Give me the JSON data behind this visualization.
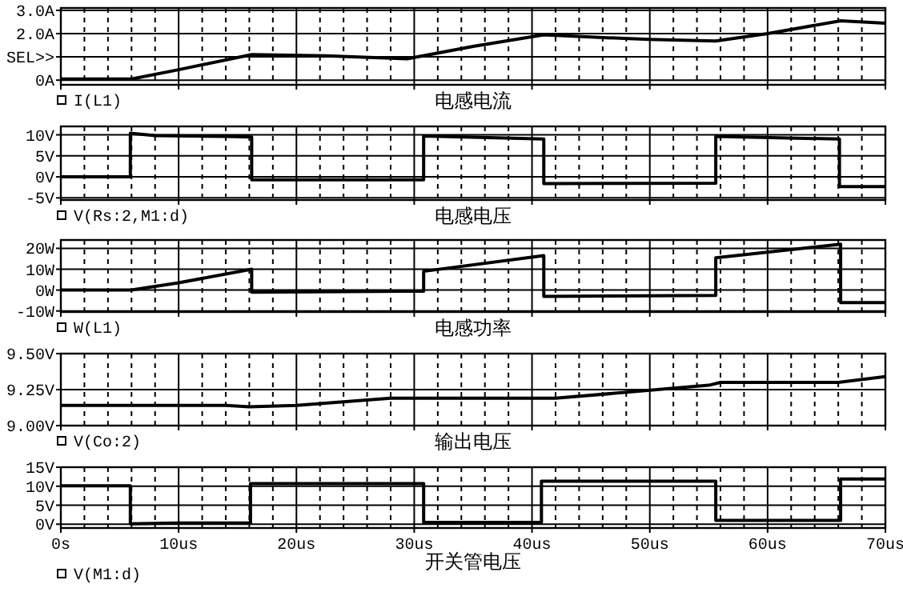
{
  "chart_data": [
    {
      "type": "line",
      "xlabel": "电感电流",
      "legend": "bottom left",
      "grid": true,
      "tick_labels": "y",
      "line_style": "solid",
      "xlim": [
        0,
        70
      ],
      "xticks": [
        0,
        10,
        20,
        30,
        40,
        50,
        60,
        70
      ],
      "ylim": [
        -0.2,
        3.1
      ],
      "yticks": [
        {
          "value": 0,
          "label": "0A"
        },
        {
          "value": 1,
          "label": "SEL>>"
        },
        {
          "value": 2,
          "label": "2.0A"
        },
        {
          "value": 3,
          "label": "3.0A"
        }
      ],
      "x": [
        0,
        6,
        10,
        16.2,
        22.5,
        29.4,
        35,
        41,
        45,
        50,
        55.6,
        60,
        66.2,
        70
      ],
      "series": [
        {
          "name": "I(L1)",
          "color": "#000000",
          "values": [
            0.05,
            0.05,
            0.45,
            1.1,
            1.05,
            0.92,
            1.45,
            1.95,
            1.85,
            1.75,
            1.68,
            2.0,
            2.55,
            2.45
          ]
        }
      ]
    },
    {
      "type": "line",
      "xlabel": "电感电压",
      "legend": "bottom left",
      "grid": true,
      "tick_labels": "y",
      "line_style": "solid",
      "xlim": [
        0,
        70
      ],
      "xticks": [
        0,
        10,
        20,
        30,
        40,
        50,
        60,
        70
      ],
      "ylim": [
        -5.5,
        12
      ],
      "yticks": [
        {
          "value": -5,
          "label": "-5V"
        },
        {
          "value": 0,
          "label": "0V"
        },
        {
          "value": 5,
          "label": "5V"
        },
        {
          "value": 10,
          "label": "10V"
        }
      ],
      "x": [
        0,
        5.9,
        5.9,
        8,
        14,
        16.2,
        16.2,
        30.8,
        30.8,
        37,
        41,
        41,
        55.6,
        55.6,
        66.1,
        66.1,
        70
      ],
      "series": [
        {
          "name": "V(Rs:2,M1:d)",
          "color": "#000000",
          "values": [
            0,
            0,
            10.4,
            9.8,
            9.6,
            9.5,
            -0.7,
            -0.7,
            9.7,
            9.3,
            9.0,
            -1.6,
            -1.5,
            9.6,
            9.0,
            -2.3,
            -2.3
          ]
        }
      ]
    },
    {
      "type": "line",
      "xlabel": "电感功率",
      "legend": "bottom left",
      "grid": true,
      "tick_labels": "y",
      "line_style": "solid",
      "xlim": [
        0,
        70
      ],
      "xticks": [
        0,
        10,
        20,
        30,
        40,
        50,
        60,
        70
      ],
      "ylim": [
        -10.5,
        24
      ],
      "yticks": [
        {
          "value": -10,
          "label": "-10W"
        },
        {
          "value": 0,
          "label": "0W"
        },
        {
          "value": 10,
          "label": "10W"
        },
        {
          "value": 20,
          "label": "20W"
        }
      ],
      "x": [
        0,
        6,
        10,
        16.2,
        16.2,
        30.8,
        30.8,
        41,
        41,
        55.6,
        55.6,
        66.2,
        66.2,
        70
      ],
      "series": [
        {
          "name": "W(L1)",
          "color": "#000000",
          "values": [
            0,
            0,
            3.5,
            10,
            -1,
            -0.5,
            9,
            16.5,
            -3,
            -2.5,
            15.5,
            22,
            -6,
            -6
          ]
        }
      ]
    },
    {
      "type": "line",
      "xlabel": "输出电压",
      "legend": "bottom left",
      "grid": true,
      "tick_labels": "y",
      "line_style": "solid",
      "xlim": [
        0,
        70
      ],
      "xticks": [
        0,
        10,
        20,
        30,
        40,
        50,
        60,
        70
      ],
      "ylim": [
        9.0,
        9.5
      ],
      "yticks": [
        {
          "value": 9.0,
          "label": "9.00V"
        },
        {
          "value": 9.25,
          "label": "9.25V"
        },
        {
          "value": 9.5,
          "label": "9.50V"
        }
      ],
      "x": [
        0,
        14,
        16,
        20,
        28,
        42,
        55,
        56,
        66,
        70
      ],
      "series": [
        {
          "name": "V(Co:2)",
          "color": "#000000",
          "values": [
            9.14,
            9.14,
            9.13,
            9.14,
            9.19,
            9.19,
            9.28,
            9.3,
            9.3,
            9.34
          ]
        }
      ]
    },
    {
      "type": "line",
      "xlabel": "开关管电压",
      "legend": "bottom left",
      "grid": true,
      "line_style": "solid",
      "xlim": [
        0,
        70
      ],
      "xticks": [
        {
          "value": 0,
          "label": "0s"
        },
        {
          "value": 10,
          "label": "10us"
        },
        {
          "value": 20,
          "label": "20us"
        },
        {
          "value": 30,
          "label": "30us"
        },
        {
          "value": 40,
          "label": "40us"
        },
        {
          "value": 50,
          "label": "50us"
        },
        {
          "value": 60,
          "label": "60us"
        },
        {
          "value": 70,
          "label": "70us"
        }
      ],
      "ylim": [
        -1,
        15
      ],
      "yticks": [
        {
          "value": 0,
          "label": "0V"
        },
        {
          "value": 5,
          "label": "5V"
        },
        {
          "value": 10,
          "label": "10V"
        },
        {
          "value": 15,
          "label": "15V"
        }
      ],
      "x": [
        0,
        5.9,
        5.9,
        10,
        16.1,
        16.1,
        30.8,
        30.8,
        40.8,
        40.8,
        55.6,
        55.6,
        66.2,
        66.2,
        70
      ],
      "series": [
        {
          "name": "V(M1:d)",
          "color": "#000000",
          "values": [
            10.1,
            10.1,
            0.1,
            0.3,
            0.3,
            10.7,
            10.7,
            0.5,
            0.5,
            11.3,
            11.3,
            1.0,
            1.0,
            11.9,
            11.9
          ]
        }
      ]
    }
  ]
}
